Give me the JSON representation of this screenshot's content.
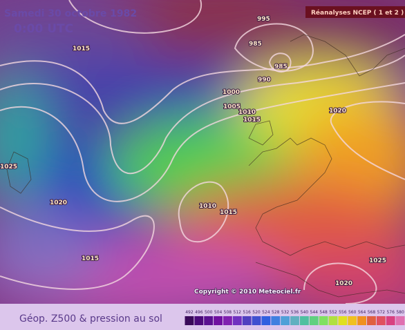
{
  "header": {
    "date": "Samedi 30 octobre 1982",
    "time": "0:00 UTC",
    "source": "Réanalyses NCEP ( 1 et 2 )"
  },
  "isobar_labels": [
    1015,
    995,
    985,
    985,
    990,
    1000,
    1005,
    1010,
    1015,
    1020,
    1025,
    1020,
    1010,
    1015,
    1015,
    1025,
    1020
  ],
  "copyright": "Copyright © 2010 Meteociel.fr",
  "footer": {
    "title": "Géop. Z500 & pression au sol",
    "scale": {
      "values": [
        492,
        496,
        500,
        504,
        508,
        512,
        516,
        520,
        524,
        528,
        532,
        536,
        540,
        544,
        548,
        552,
        556,
        560,
        564,
        568,
        572,
        576,
        580
      ],
      "colors": [
        "#3a0a5a",
        "#4b0a7a",
        "#5a1090",
        "#7010a0",
        "#8020b0",
        "#7030c0",
        "#5040c0",
        "#4050d0",
        "#3060e0",
        "#4080e0",
        "#50a0d8",
        "#60b0c0",
        "#50c0a0",
        "#60d080",
        "#80e060",
        "#b0e040",
        "#e0e020",
        "#f0c020",
        "#f09020",
        "#e06040",
        "#e05060",
        "#d84080",
        "#e070b0"
      ]
    }
  }
}
